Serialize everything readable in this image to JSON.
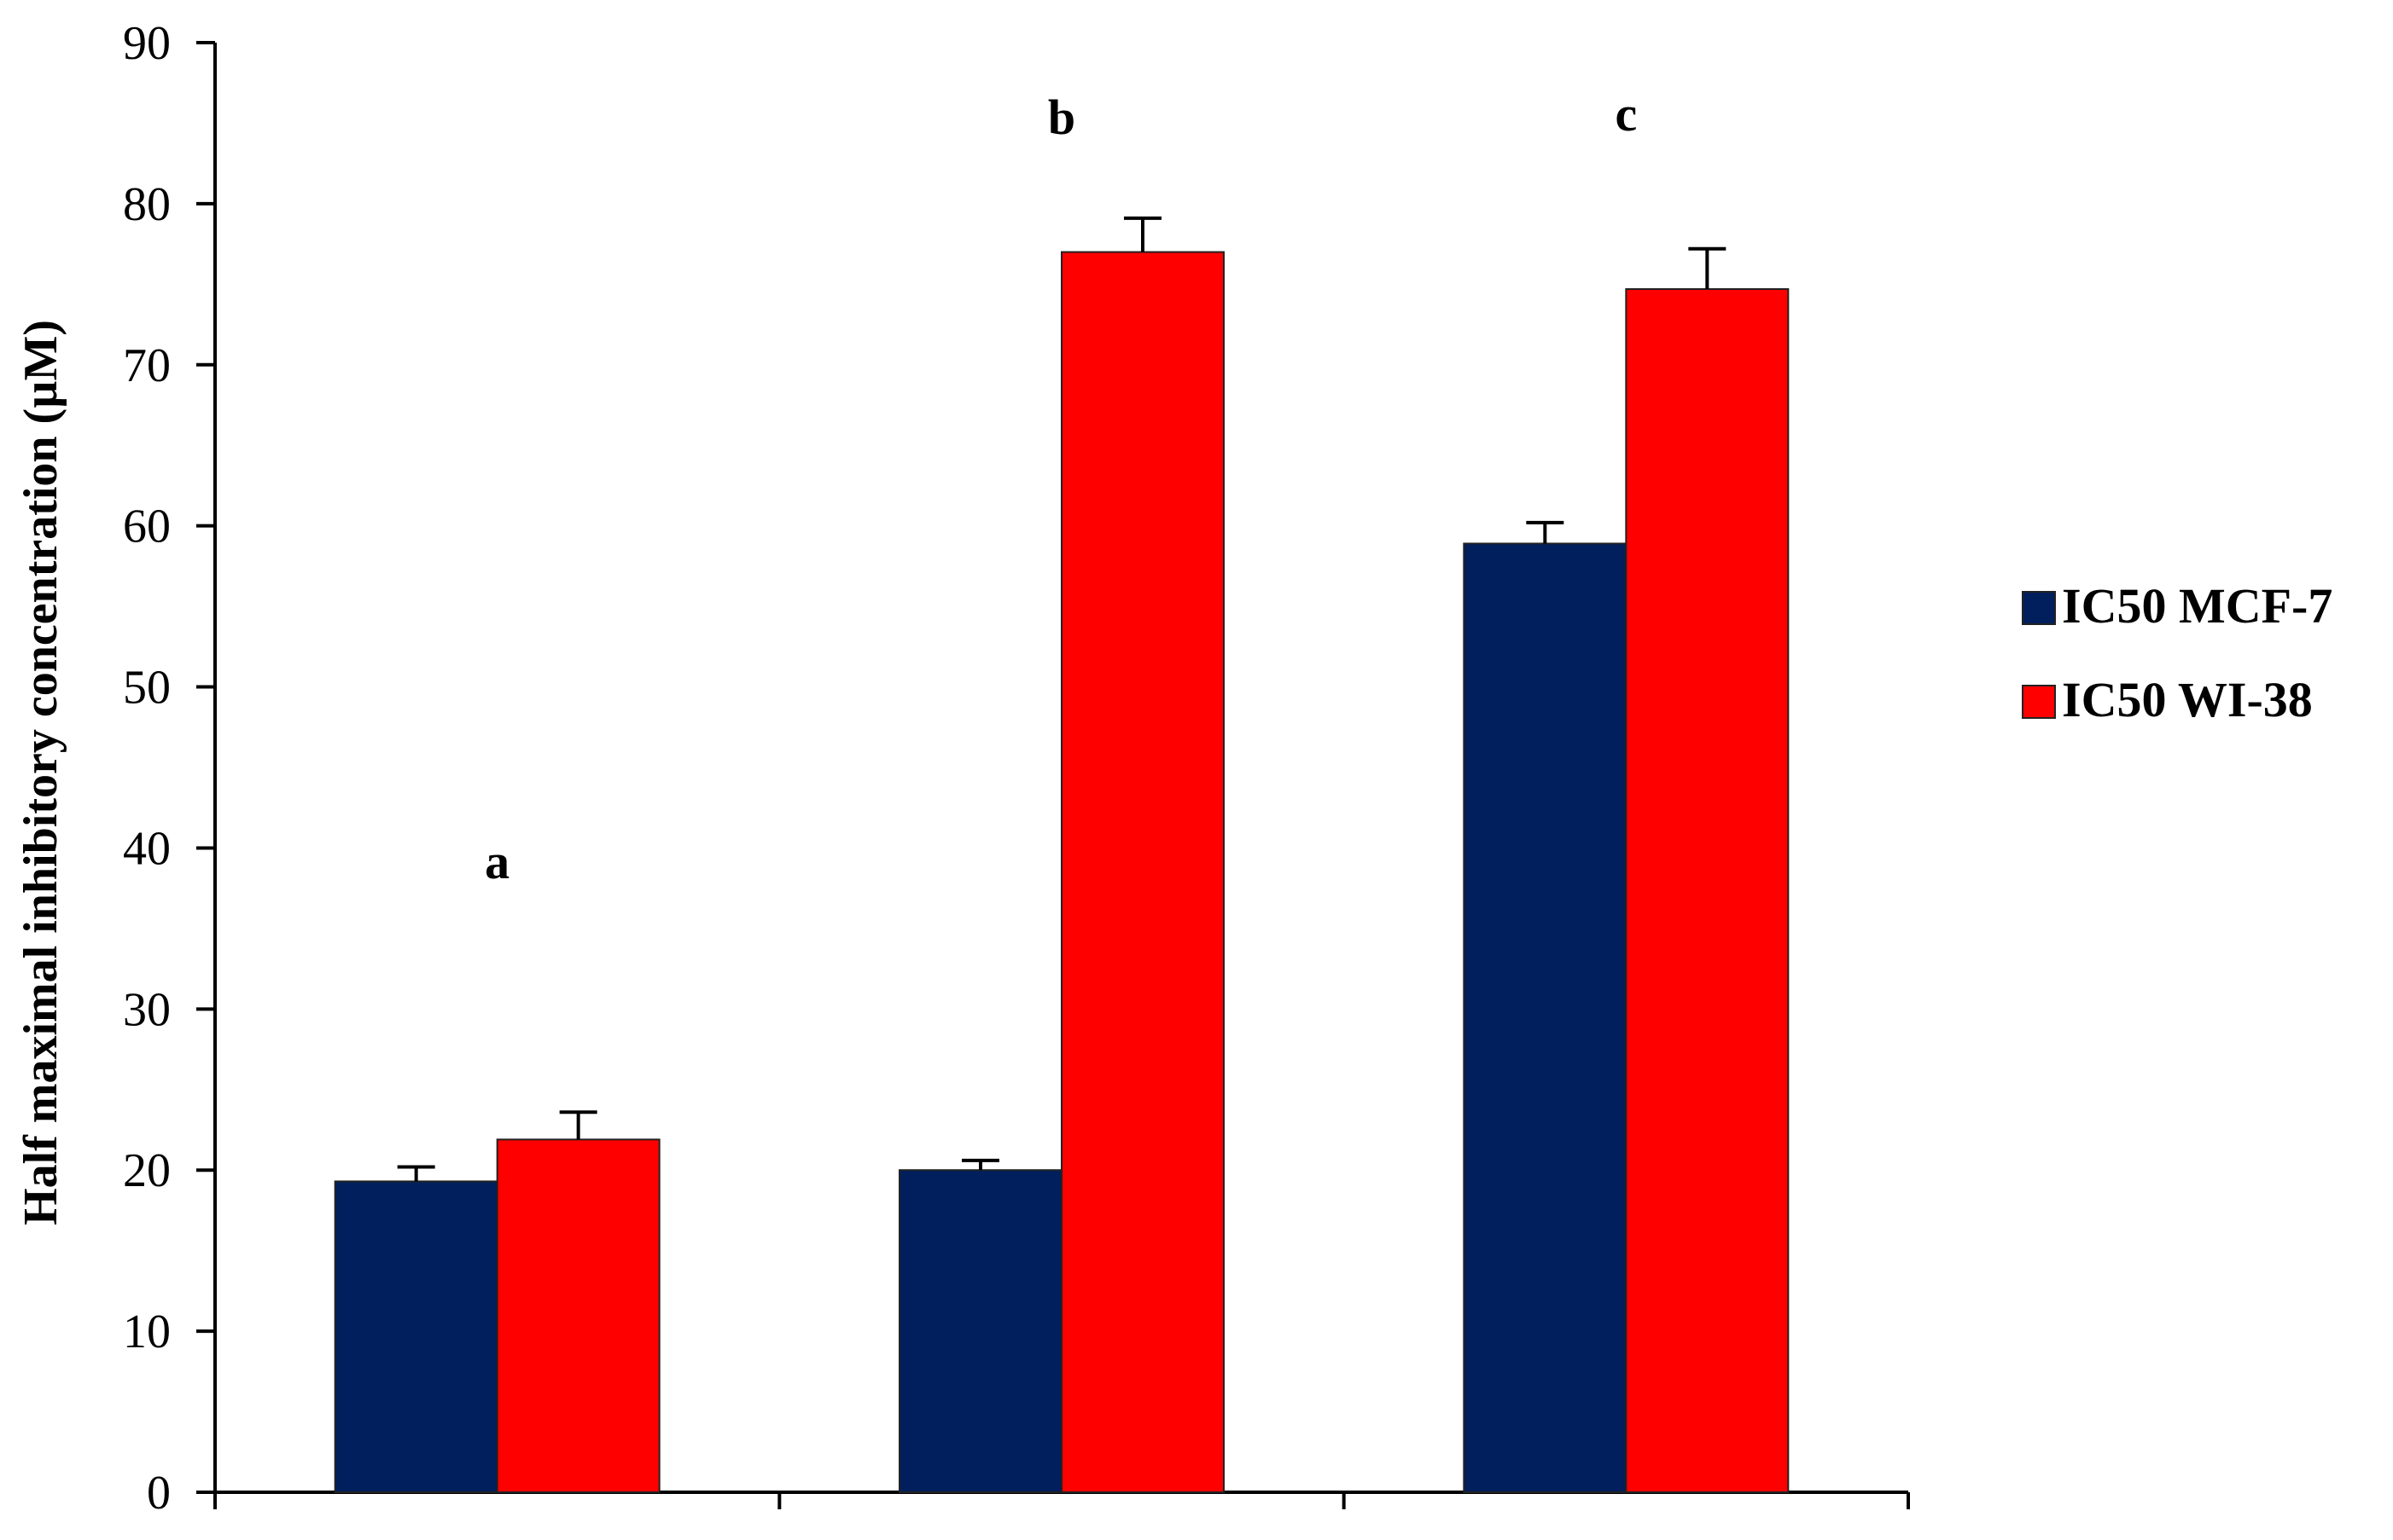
{
  "chart_data": {
    "type": "bar",
    "categories": [
      "a",
      "b",
      "c"
    ],
    "series": [
      {
        "name": "IC50 MCF-7",
        "color": "#001f5c",
        "values": [
          19.3,
          20.0,
          58.9
        ],
        "errors": [
          0.9,
          0.6,
          1.3
        ]
      },
      {
        "name": "IC50 WI-38",
        "color": "#ff0000",
        "values": [
          21.9,
          77.0,
          74.7
        ],
        "errors": [
          1.7,
          2.1,
          2.5
        ]
      }
    ],
    "ylabel": "Half maximal inhibitory concentration (µM)",
    "xlabel": "",
    "ylim": [
      0,
      90
    ],
    "yticks": [
      "0",
      "10",
      "20",
      "30",
      "40",
      "50",
      "60",
      "70",
      "80",
      "90"
    ],
    "grid": false,
    "legend_position": "right"
  }
}
